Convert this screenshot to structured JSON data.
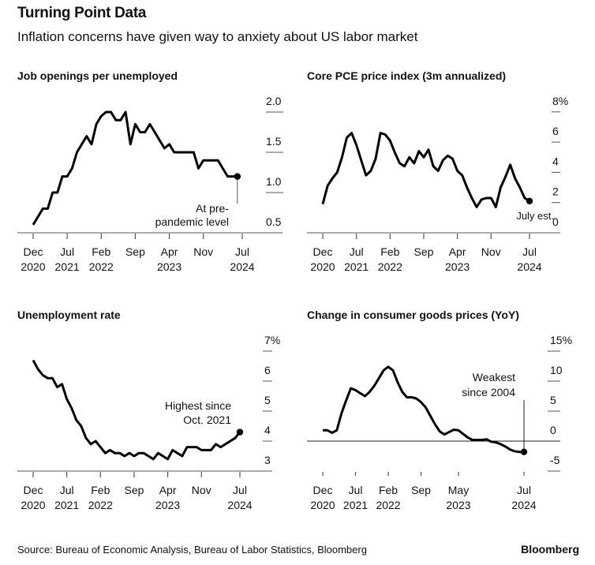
{
  "header": {
    "title": "Turning Point Data",
    "subtitle": "Inflation concerns have given way to anxiety about US labor market"
  },
  "footer": {
    "source": "Source: Bureau of Economic Analysis, Bureau of Labor Statistics, Bloomberg",
    "brand": "Bloomberg"
  },
  "colors": {
    "line": "#000000",
    "axis": "#555555",
    "text": "#111111"
  },
  "chart_data": [
    {
      "type": "line",
      "title": "Job openings per unemployed",
      "ylim": [
        0.5,
        2.0
      ],
      "yticks": [
        {
          "value": 2.0,
          "label": "2.0"
        },
        {
          "value": 1.5,
          "label": "1.5"
        },
        {
          "value": 1.0,
          "label": "1.0"
        },
        {
          "value": 0.5,
          "label": "0.5"
        }
      ],
      "xticks": [
        {
          "month": "2020-12",
          "l1": "Dec",
          "l2": "2020"
        },
        {
          "month": "2021-07",
          "l1": "Jul",
          "l2": "2021"
        },
        {
          "month": "2022-02",
          "l1": "Feb",
          "l2": "2022"
        },
        {
          "month": "2022-09",
          "l1": "Sep",
          "l2": ""
        },
        {
          "month": "2023-04",
          "l1": "Apr",
          "l2": "2023"
        },
        {
          "month": "2023-11",
          "l1": "Nov",
          "l2": ""
        },
        {
          "month": "2024-07",
          "l1": "Jul",
          "l2": "2024"
        }
      ],
      "annotation": [
        "At pre-",
        "pandemic level"
      ],
      "x": [
        "2020-12",
        "2021-01",
        "2021-02",
        "2021-03",
        "2021-04",
        "2021-05",
        "2021-06",
        "2021-07",
        "2021-08",
        "2021-09",
        "2021-10",
        "2021-11",
        "2021-12",
        "2022-01",
        "2022-02",
        "2022-03",
        "2022-04",
        "2022-05",
        "2022-06",
        "2022-07",
        "2022-08",
        "2022-09",
        "2022-10",
        "2022-11",
        "2022-12",
        "2023-01",
        "2023-02",
        "2023-03",
        "2023-04",
        "2023-05",
        "2023-06",
        "2023-07",
        "2023-08",
        "2023-09",
        "2023-10",
        "2023-11",
        "2023-12",
        "2024-01",
        "2024-02",
        "2024-03",
        "2024-04",
        "2024-05",
        "2024-06"
      ],
      "values": [
        0.6,
        0.7,
        0.8,
        0.8,
        1.0,
        1.0,
        1.2,
        1.2,
        1.3,
        1.5,
        1.6,
        1.7,
        1.6,
        1.85,
        1.95,
        2.0,
        2.0,
        1.9,
        1.9,
        2.0,
        1.6,
        1.85,
        1.75,
        1.75,
        1.85,
        1.75,
        1.65,
        1.55,
        1.6,
        1.5,
        1.5,
        1.5,
        1.5,
        1.5,
        1.3,
        1.4,
        1.4,
        1.4,
        1.4,
        1.3,
        1.2,
        1.2,
        1.2
      ]
    },
    {
      "type": "line",
      "title": "Core PCE price index (3m annualized)",
      "ylim": [
        0,
        8
      ],
      "yticks": [
        {
          "value": 8,
          "label": "8%"
        },
        {
          "value": 6,
          "label": "6"
        },
        {
          "value": 4,
          "label": "4"
        },
        {
          "value": 2,
          "label": "2"
        },
        {
          "value": 0,
          "label": "0"
        }
      ],
      "xticks": [
        {
          "month": "2020-12",
          "l1": "Dec",
          "l2": "2020"
        },
        {
          "month": "2021-07",
          "l1": "Jul",
          "l2": "2021"
        },
        {
          "month": "2022-02",
          "l1": "Feb",
          "l2": "2022"
        },
        {
          "month": "2022-09",
          "l1": "Sep",
          "l2": ""
        },
        {
          "month": "2023-04",
          "l1": "Apr",
          "l2": "2023"
        },
        {
          "month": "2023-11",
          "l1": "Nov",
          "l2": ""
        },
        {
          "month": "2024-07",
          "l1": "Jul",
          "l2": "2024"
        }
      ],
      "annotation": [
        "July est."
      ],
      "x": [
        "2020-12",
        "2021-01",
        "2021-02",
        "2021-03",
        "2021-04",
        "2021-05",
        "2021-06",
        "2021-07",
        "2021-08",
        "2021-09",
        "2021-10",
        "2021-11",
        "2021-12",
        "2022-01",
        "2022-02",
        "2022-03",
        "2022-04",
        "2022-05",
        "2022-06",
        "2022-07",
        "2022-08",
        "2022-09",
        "2022-10",
        "2022-11",
        "2022-12",
        "2023-01",
        "2023-02",
        "2023-03",
        "2023-04",
        "2023-05",
        "2023-06",
        "2023-07",
        "2023-08",
        "2023-09",
        "2023-10",
        "2023-11",
        "2023-12",
        "2024-01",
        "2024-02",
        "2024-03",
        "2024-04",
        "2024-05",
        "2024-06",
        "2024-07"
      ],
      "values": [
        1.9,
        3.1,
        3.6,
        4.0,
        5.0,
        6.3,
        6.6,
        5.8,
        4.8,
        3.8,
        4.1,
        4.9,
        6.6,
        6.5,
        6.1,
        5.3,
        4.6,
        4.4,
        5.0,
        4.6,
        5.4,
        5.0,
        5.5,
        4.4,
        4.1,
        4.8,
        5.1,
        4.9,
        4.1,
        3.8,
        3.0,
        2.3,
        1.7,
        2.2,
        2.3,
        2.3,
        1.7,
        3.0,
        3.7,
        4.5,
        3.6,
        3.0,
        2.3,
        2.1
      ]
    },
    {
      "type": "line",
      "title": "Unemployment rate",
      "ylim": [
        3,
        7
      ],
      "yticks": [
        {
          "value": 7,
          "label": "7%"
        },
        {
          "value": 6,
          "label": "6"
        },
        {
          "value": 5,
          "label": "5"
        },
        {
          "value": 4,
          "label": "4"
        },
        {
          "value": 3,
          "label": "3"
        }
      ],
      "xticks": [
        {
          "month": "2020-12",
          "l1": "Dec",
          "l2": "2020"
        },
        {
          "month": "2021-07",
          "l1": "Jul",
          "l2": "2021"
        },
        {
          "month": "2022-02",
          "l1": "Feb",
          "l2": "2022"
        },
        {
          "month": "2022-09",
          "l1": "Sep",
          "l2": ""
        },
        {
          "month": "2023-04",
          "l1": "Apr",
          "l2": "2023"
        },
        {
          "month": "2023-11",
          "l1": "Nov",
          "l2": ""
        },
        {
          "month": "2024-07",
          "l1": "Jul",
          "l2": "2024"
        }
      ],
      "annotation": [
        "Highest since",
        "Oct. 2021"
      ],
      "x": [
        "2020-12",
        "2021-01",
        "2021-02",
        "2021-03",
        "2021-04",
        "2021-05",
        "2021-06",
        "2021-07",
        "2021-08",
        "2021-09",
        "2021-10",
        "2021-11",
        "2021-12",
        "2022-01",
        "2022-02",
        "2022-03",
        "2022-04",
        "2022-05",
        "2022-06",
        "2022-07",
        "2022-08",
        "2022-09",
        "2022-10",
        "2022-11",
        "2022-12",
        "2023-01",
        "2023-02",
        "2023-03",
        "2023-04",
        "2023-05",
        "2023-06",
        "2023-07",
        "2023-08",
        "2023-09",
        "2023-10",
        "2023-11",
        "2023-12",
        "2024-01",
        "2024-02",
        "2024-03",
        "2024-04",
        "2024-05",
        "2024-06",
        "2024-07"
      ],
      "values": [
        6.7,
        6.4,
        6.2,
        6.1,
        6.1,
        5.8,
        5.9,
        5.4,
        5.1,
        4.7,
        4.5,
        4.1,
        3.9,
        4.0,
        3.8,
        3.6,
        3.7,
        3.6,
        3.6,
        3.5,
        3.6,
        3.5,
        3.6,
        3.6,
        3.5,
        3.4,
        3.6,
        3.5,
        3.4,
        3.7,
        3.6,
        3.5,
        3.8,
        3.8,
        3.8,
        3.7,
        3.7,
        3.7,
        3.9,
        3.8,
        3.9,
        4.0,
        4.1,
        4.3
      ]
    },
    {
      "type": "line",
      "title": "Change in consumer goods prices (YoY)",
      "ylim": [
        -5,
        15
      ],
      "yticks": [
        {
          "value": 15,
          "label": "15%"
        },
        {
          "value": 10,
          "label": "10"
        },
        {
          "value": 5,
          "label": "5"
        },
        {
          "value": 0,
          "label": "0"
        },
        {
          "value": -5,
          "label": "-5"
        }
      ],
      "xticks": [
        {
          "month": "2020-12",
          "l1": "Dec",
          "l2": "2020"
        },
        {
          "month": "2021-07",
          "l1": "Jul",
          "l2": "2021"
        },
        {
          "month": "2022-02",
          "l1": "Feb",
          "l2": "2022"
        },
        {
          "month": "2022-09",
          "l1": "Sep",
          "l2": ""
        },
        {
          "month": "2023-05",
          "l1": "May",
          "l2": "2023"
        },
        {
          "month": "2024-07",
          "l1": "Jul",
          "l2": "2024"
        }
      ],
      "annotation": [
        "Weakest",
        "since 2004"
      ],
      "x": [
        "2020-12",
        "2021-01",
        "2021-02",
        "2021-03",
        "2021-04",
        "2021-05",
        "2021-06",
        "2021-07",
        "2021-08",
        "2021-09",
        "2021-10",
        "2021-11",
        "2021-12",
        "2022-01",
        "2022-02",
        "2022-03",
        "2022-04",
        "2022-05",
        "2022-06",
        "2022-07",
        "2022-08",
        "2022-09",
        "2022-10",
        "2022-11",
        "2022-12",
        "2023-01",
        "2023-02",
        "2023-03",
        "2023-04",
        "2023-05",
        "2023-06",
        "2023-07",
        "2023-08",
        "2023-09",
        "2023-10",
        "2023-11",
        "2023-12",
        "2024-01",
        "2024-02",
        "2024-03",
        "2024-04",
        "2024-05",
        "2024-06",
        "2024-07"
      ],
      "values": [
        1.8,
        1.8,
        1.4,
        1.8,
        4.6,
        6.8,
        8.8,
        8.5,
        8.0,
        7.5,
        8.2,
        9.2,
        10.5,
        11.8,
        12.4,
        11.8,
        9.8,
        8.2,
        7.3,
        7.3,
        7.1,
        6.5,
        5.6,
        4.2,
        2.8,
        1.6,
        1.1,
        1.5,
        1.9,
        1.8,
        1.2,
        0.6,
        0.2,
        0.2,
        0.2,
        0.3,
        -0.1,
        -0.2,
        -0.5,
        -0.9,
        -1.4,
        -1.7,
        -1.8,
        -1.8
      ]
    }
  ]
}
